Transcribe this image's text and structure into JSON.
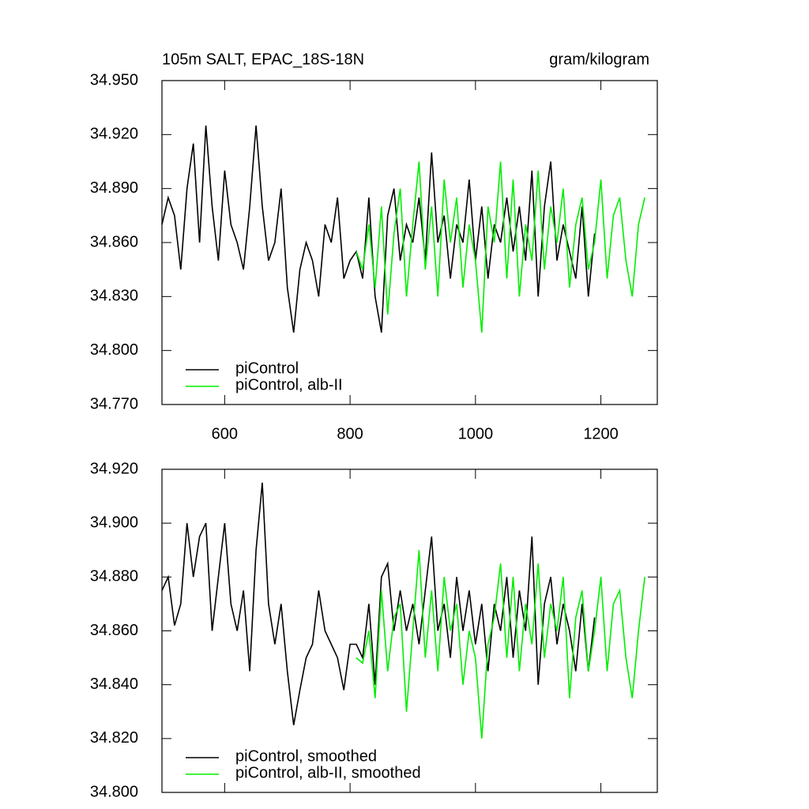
{
  "chart_data": [
    {
      "type": "line",
      "title": "105m SALT, EPAC_18S-18N",
      "units": "gram/kilogram",
      "x": [
        500,
        510,
        520,
        530,
        540,
        550,
        560,
        570,
        580,
        590,
        600,
        610,
        620,
        630,
        640,
        650,
        660,
        670,
        680,
        690,
        700,
        710,
        720,
        730,
        740,
        750,
        760,
        770,
        780,
        790,
        800,
        810,
        820,
        830,
        840,
        850,
        860,
        870,
        880,
        890,
        900,
        910,
        920,
        930,
        940,
        950,
        960,
        970,
        980,
        990,
        1000,
        1010,
        1020,
        1030,
        1040,
        1050,
        1060,
        1070,
        1080,
        1090,
        1100,
        1110,
        1120,
        1130,
        1140,
        1150,
        1160,
        1170,
        1180,
        1190,
        1200,
        1210,
        1220,
        1230,
        1240,
        1250,
        1260,
        1270,
        1280
      ],
      "xlim": [
        500,
        1290
      ],
      "xticks": [
        600,
        800,
        1000,
        1200
      ],
      "ylim": [
        34.77,
        34.95
      ],
      "yticks": [
        {
          "value": 34.77,
          "label": "34.770"
        },
        {
          "value": 34.8,
          "label": "34.800"
        },
        {
          "value": 34.83,
          "label": "34.830"
        },
        {
          "value": 34.86,
          "label": "34.860"
        },
        {
          "value": 34.89,
          "label": "34.890"
        },
        {
          "value": 34.92,
          "label": "34.920"
        },
        {
          "value": 34.95,
          "label": "34.950"
        }
      ],
      "series": [
        {
          "name": "piControl",
          "color": "#000000",
          "values": [
            34.87,
            34.885,
            34.875,
            34.845,
            34.89,
            34.915,
            34.86,
            34.925,
            34.88,
            34.85,
            34.9,
            34.87,
            34.86,
            34.845,
            34.88,
            34.925,
            34.88,
            34.85,
            34.86,
            34.89,
            34.835,
            34.81,
            34.845,
            34.86,
            34.85,
            34.83,
            34.87,
            34.86,
            34.885,
            34.84,
            34.85,
            34.855,
            34.84,
            34.885,
            34.83,
            34.81,
            34.875,
            34.89,
            34.85,
            34.87,
            34.86,
            34.885,
            34.85,
            34.91,
            34.86,
            34.875,
            34.84,
            34.87,
            34.86,
            34.895,
            34.85,
            34.88,
            34.84,
            34.87,
            34.86,
            34.885,
            34.855,
            34.88,
            34.85,
            34.9,
            34.83,
            34.88,
            34.905,
            34.85,
            34.87,
            34.855,
            34.84,
            34.88,
            34.83,
            34.865,
            null,
            null,
            null,
            null,
            null,
            null,
            null,
            null,
            null
          ]
        },
        {
          "name": "piControl, alb-II",
          "color": "#00ee00",
          "values": [
            null,
            null,
            null,
            null,
            null,
            null,
            null,
            null,
            null,
            null,
            null,
            null,
            null,
            null,
            null,
            null,
            null,
            null,
            null,
            null,
            null,
            null,
            null,
            null,
            null,
            null,
            null,
            null,
            null,
            null,
            null,
            34.855,
            34.845,
            34.87,
            34.835,
            34.88,
            34.82,
            34.865,
            34.89,
            34.83,
            34.87,
            34.905,
            34.845,
            34.88,
            34.83,
            34.895,
            34.86,
            34.885,
            34.835,
            34.87,
            34.85,
            34.81,
            34.88,
            34.86,
            34.905,
            34.84,
            34.895,
            34.83,
            34.87,
            34.85,
            34.9,
            34.845,
            34.88,
            34.86,
            34.89,
            34.835,
            34.87,
            34.885,
            34.845,
            34.86,
            34.895,
            34.84,
            34.875,
            34.885,
            34.85,
            34.83,
            34.87,
            34.885,
            null
          ]
        }
      ]
    },
    {
      "type": "line",
      "x": [
        500,
        510,
        520,
        530,
        540,
        550,
        560,
        570,
        580,
        590,
        600,
        610,
        620,
        630,
        640,
        650,
        660,
        670,
        680,
        690,
        700,
        710,
        720,
        730,
        740,
        750,
        760,
        770,
        780,
        790,
        800,
        810,
        820,
        830,
        840,
        850,
        860,
        870,
        880,
        890,
        900,
        910,
        920,
        930,
        940,
        950,
        960,
        970,
        980,
        990,
        1000,
        1010,
        1020,
        1030,
        1040,
        1050,
        1060,
        1070,
        1080,
        1090,
        1100,
        1110,
        1120,
        1130,
        1140,
        1150,
        1160,
        1170,
        1180,
        1190,
        1200,
        1210,
        1220,
        1230,
        1240,
        1250,
        1260,
        1270,
        1280
      ],
      "xlim": [
        500,
        1290
      ],
      "xticks": [
        600,
        800,
        1000,
        1200
      ],
      "ylim": [
        34.8,
        34.92
      ],
      "yticks": [
        {
          "value": 34.8,
          "label": "34.800"
        },
        {
          "value": 34.82,
          "label": "34.820"
        },
        {
          "value": 34.84,
          "label": "34.840"
        },
        {
          "value": 34.86,
          "label": "34.860"
        },
        {
          "value": 34.88,
          "label": "34.880"
        },
        {
          "value": 34.9,
          "label": "34.900"
        },
        {
          "value": 34.92,
          "label": "34.920"
        }
      ],
      "series": [
        {
          "name": "piControl, smoothed",
          "color": "#000000",
          "values": [
            34.875,
            34.88,
            34.862,
            34.87,
            34.9,
            34.88,
            34.895,
            34.9,
            34.86,
            34.88,
            34.9,
            34.87,
            34.86,
            34.875,
            34.845,
            34.89,
            34.915,
            34.87,
            34.855,
            34.87,
            34.845,
            34.825,
            34.838,
            34.85,
            34.855,
            34.875,
            34.86,
            34.855,
            34.85,
            34.838,
            34.855,
            34.855,
            34.85,
            34.87,
            34.84,
            34.88,
            34.885,
            34.86,
            34.875,
            34.86,
            34.87,
            34.855,
            34.875,
            34.895,
            34.86,
            34.87,
            34.85,
            34.88,
            34.86,
            34.875,
            34.855,
            34.87,
            34.845,
            34.87,
            34.86,
            34.88,
            34.85,
            34.875,
            34.86,
            34.895,
            34.84,
            34.87,
            34.88,
            34.855,
            34.87,
            34.86,
            34.845,
            34.87,
            34.845,
            34.865,
            null,
            null,
            null,
            null,
            null,
            null,
            null,
            null,
            null
          ]
        },
        {
          "name": "piControl, alb-II, smoothed",
          "color": "#00ee00",
          "values": [
            null,
            null,
            null,
            null,
            null,
            null,
            null,
            null,
            null,
            null,
            null,
            null,
            null,
            null,
            null,
            null,
            null,
            null,
            null,
            null,
            null,
            null,
            null,
            null,
            null,
            null,
            null,
            null,
            null,
            null,
            null,
            34.85,
            34.848,
            34.86,
            34.835,
            34.875,
            34.845,
            34.865,
            34.87,
            34.83,
            34.86,
            34.89,
            34.85,
            34.875,
            34.845,
            34.88,
            34.86,
            34.87,
            34.84,
            34.86,
            34.85,
            34.82,
            34.855,
            34.865,
            34.885,
            34.85,
            34.88,
            34.845,
            34.87,
            34.855,
            34.885,
            34.85,
            34.87,
            34.86,
            34.88,
            34.835,
            34.865,
            34.875,
            34.845,
            34.86,
            34.88,
            34.845,
            34.87,
            34.875,
            34.85,
            34.835,
            34.86,
            34.88,
            null
          ]
        }
      ]
    }
  ]
}
